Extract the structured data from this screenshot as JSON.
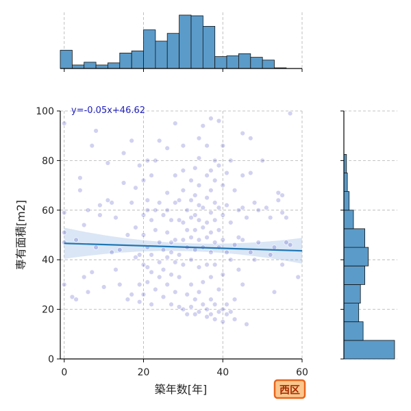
{
  "chart_data": {
    "type": "scatter",
    "subtype": "jointplot",
    "xlabel": "築年数[年]",
    "ylabel": "専有面積[m2]",
    "xlim": [
      -1,
      60
    ],
    "ylim": [
      0,
      100
    ],
    "xticks": [
      0,
      20,
      40,
      60
    ],
    "yticks": [
      0,
      20,
      40,
      60,
      80,
      100
    ],
    "grid": true,
    "regression": {
      "label": "y=-0.05x+46.62",
      "slope": -0.05,
      "intercept": 46.62
    },
    "region_badge": "西区",
    "colors": {
      "points": "#1a1ab3",
      "regression_line": "#1f77b4",
      "confidence_band": "#aec7e8",
      "histogram_fill": "#5b9bc9",
      "histogram_edge": "#111111",
      "badge_fill": "#fbc78f",
      "badge_border": "#e8641a",
      "grid": "#b0b0b0"
    },
    "x_histogram": {
      "bin_width": 3,
      "bin_start": -1,
      "counts": [
        26,
        5,
        9,
        5,
        8,
        22,
        25,
        55,
        39,
        50,
        76,
        75,
        60,
        17,
        18,
        21,
        16,
        12,
        1
      ]
    },
    "y_histogram": {
      "bin_width": 7.5,
      "bin_start": 0,
      "counts": [
        58,
        22,
        17,
        19,
        24,
        28,
        24,
        11,
        6,
        4,
        3,
        0,
        0
      ]
    },
    "points": [
      [
        0,
        95
      ],
      [
        0,
        59
      ],
      [
        0,
        51
      ],
      [
        0,
        47
      ],
      [
        0,
        30
      ],
      [
        2,
        25
      ],
      [
        3,
        48
      ],
      [
        3,
        24
      ],
      [
        4,
        73
      ],
      [
        4,
        68
      ],
      [
        5,
        54
      ],
      [
        5,
        33
      ],
      [
        6,
        27
      ],
      [
        6,
        60
      ],
      [
        7,
        86
      ],
      [
        7,
        35
      ],
      [
        8,
        92
      ],
      [
        8,
        45
      ],
      [
        9,
        62
      ],
      [
        9,
        58
      ],
      [
        10,
        29
      ],
      [
        11,
        79
      ],
      [
        11,
        64
      ],
      [
        12,
        63
      ],
      [
        12,
        43
      ],
      [
        13,
        36
      ],
      [
        13,
        57
      ],
      [
        14,
        44
      ],
      [
        14,
        30
      ],
      [
        15,
        71
      ],
      [
        15,
        83
      ],
      [
        16,
        24
      ],
      [
        16,
        50
      ],
      [
        17,
        63
      ],
      [
        17,
        88
      ],
      [
        17,
        26
      ],
      [
        18,
        69
      ],
      [
        18,
        53
      ],
      [
        18,
        41
      ],
      [
        19,
        30
      ],
      [
        19,
        42
      ],
      [
        19,
        78
      ],
      [
        20,
        38
      ],
      [
        20,
        72
      ],
      [
        20,
        58
      ],
      [
        20,
        26
      ],
      [
        20,
        50
      ],
      [
        21,
        80
      ],
      [
        21,
        60
      ],
      [
        21,
        64
      ],
      [
        21,
        45
      ],
      [
        21,
        31
      ],
      [
        22,
        35
      ],
      [
        22,
        74
      ],
      [
        22,
        42
      ],
      [
        22,
        22
      ],
      [
        22,
        56
      ],
      [
        23,
        80
      ],
      [
        23,
        52
      ],
      [
        23,
        28
      ],
      [
        24,
        88
      ],
      [
        24,
        63
      ],
      [
        24,
        47
      ],
      [
        24,
        39
      ],
      [
        24,
        33
      ],
      [
        25,
        58
      ],
      [
        25,
        44
      ],
      [
        25,
        25
      ],
      [
        25,
        36
      ],
      [
        26,
        85
      ],
      [
        26,
        60
      ],
      [
        26,
        67
      ],
      [
        26,
        51
      ],
      [
        26,
        41
      ],
      [
        26,
        30
      ],
      [
        27,
        56
      ],
      [
        27,
        47
      ],
      [
        27,
        22
      ],
      [
        27,
        34
      ],
      [
        28,
        95
      ],
      [
        28,
        74
      ],
      [
        28,
        63
      ],
      [
        28,
        48
      ],
      [
        28,
        39
      ],
      [
        28,
        27
      ],
      [
        29,
        64
      ],
      [
        29,
        56
      ],
      [
        29,
        42
      ],
      [
        29,
        33
      ],
      [
        29,
        21
      ],
      [
        30,
        86
      ],
      [
        30,
        76
      ],
      [
        30,
        68
      ],
      [
        30,
        55
      ],
      [
        30,
        48
      ],
      [
        30,
        38
      ],
      [
        30,
        20
      ],
      [
        31,
        60
      ],
      [
        31,
        45
      ],
      [
        31,
        52
      ],
      [
        31,
        26
      ],
      [
        31,
        18
      ],
      [
        32,
        72
      ],
      [
        32,
        64
      ],
      [
        32,
        57
      ],
      [
        32,
        49
      ],
      [
        32,
        40
      ],
      [
        32,
        30
      ],
      [
        32,
        21
      ],
      [
        33,
        77
      ],
      [
        33,
        66
      ],
      [
        33,
        58
      ],
      [
        33,
        52
      ],
      [
        33,
        44
      ],
      [
        33,
        24
      ],
      [
        33,
        18
      ],
      [
        34,
        89
      ],
      [
        34,
        81
      ],
      [
        34,
        70
      ],
      [
        34,
        62
      ],
      [
        34,
        56
      ],
      [
        34,
        48
      ],
      [
        34,
        37
      ],
      [
        34,
        27
      ],
      [
        34,
        19
      ],
      [
        35,
        94
      ],
      [
        35,
        61
      ],
      [
        35,
        53
      ],
      [
        35,
        45
      ],
      [
        35,
        31
      ],
      [
        35,
        22
      ],
      [
        36,
        86
      ],
      [
        36,
        74
      ],
      [
        36,
        65
      ],
      [
        36,
        55
      ],
      [
        36,
        49
      ],
      [
        36,
        38
      ],
      [
        36,
        20
      ],
      [
        36,
        17
      ],
      [
        37,
        97
      ],
      [
        37,
        76
      ],
      [
        37,
        68
      ],
      [
        37,
        59
      ],
      [
        37,
        51
      ],
      [
        37,
        43
      ],
      [
        37,
        33
      ],
      [
        37,
        24
      ],
      [
        37,
        18
      ],
      [
        38,
        80
      ],
      [
        38,
        72
      ],
      [
        38,
        63
      ],
      [
        38,
        56
      ],
      [
        38,
        47
      ],
      [
        38,
        38
      ],
      [
        38,
        22
      ],
      [
        38,
        16
      ],
      [
        39,
        96
      ],
      [
        39,
        78
      ],
      [
        39,
        61
      ],
      [
        39,
        52
      ],
      [
        39,
        45
      ],
      [
        39,
        28
      ],
      [
        39,
        19
      ],
      [
        40,
        86
      ],
      [
        40,
        70
      ],
      [
        40,
        58
      ],
      [
        40,
        48
      ],
      [
        40,
        34
      ],
      [
        40,
        20
      ],
      [
        40,
        15
      ],
      [
        41,
        75
      ],
      [
        41,
        62
      ],
      [
        41,
        43
      ],
      [
        41,
        22
      ],
      [
        41,
        18
      ],
      [
        42,
        80
      ],
      [
        42,
        55
      ],
      [
        42,
        40
      ],
      [
        42,
        19
      ],
      [
        43,
        68
      ],
      [
        43,
        46
      ],
      [
        43,
        24
      ],
      [
        43,
        16
      ],
      [
        44,
        60
      ],
      [
        44,
        49
      ],
      [
        44,
        36
      ],
      [
        45,
        91
      ],
      [
        45,
        74
      ],
      [
        45,
        61
      ],
      [
        45,
        48
      ],
      [
        45,
        30
      ],
      [
        46,
        14
      ],
      [
        46,
        57
      ],
      [
        47,
        89
      ],
      [
        47,
        75
      ],
      [
        47,
        43
      ],
      [
        48,
        63
      ],
      [
        48,
        40
      ],
      [
        49,
        47
      ],
      [
        49,
        60
      ],
      [
        50,
        80
      ],
      [
        51,
        61
      ],
      [
        52,
        57
      ],
      [
        52,
        42
      ],
      [
        53,
        27
      ],
      [
        53,
        45
      ],
      [
        54,
        64
      ],
      [
        54,
        67
      ],
      [
        55,
        66
      ],
      [
        55,
        59
      ],
      [
        55,
        38
      ],
      [
        56,
        57
      ],
      [
        56,
        47
      ],
      [
        57,
        99
      ],
      [
        57,
        46
      ],
      [
        59,
        33
      ],
      [
        19,
        23
      ],
      [
        21,
        37
      ],
      [
        23,
        60
      ],
      [
        27,
        43
      ]
    ]
  }
}
